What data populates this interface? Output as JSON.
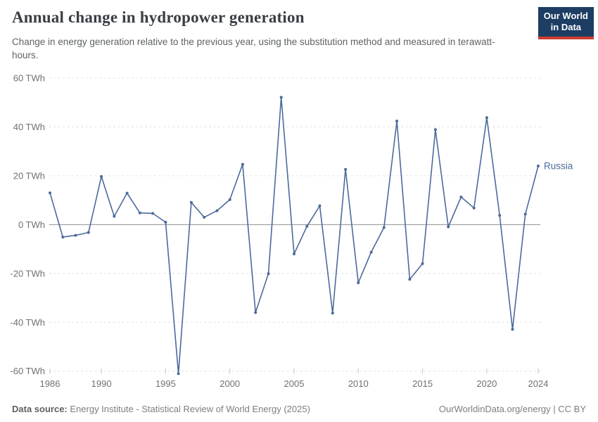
{
  "header": {
    "title": "Annual change in hydropower generation",
    "subtitle": "Change in energy generation relative to the previous year, using the substitution method and measured in terawatt-hours.",
    "logo": {
      "line1": "Our World",
      "line2": "in Data",
      "bg_color": "#1d3d63",
      "bar_color": "#cf3c33"
    }
  },
  "chart_data": {
    "type": "line",
    "title": "Annual change in hydropower generation",
    "unit": "TWh",
    "series_label": "Russia",
    "line_color": "#4C6A9C",
    "grid": "horizontal dashed",
    "legend_position": "end-of-line label",
    "x": [
      1986,
      1987,
      1988,
      1989,
      1990,
      1991,
      1992,
      1993,
      1994,
      1995,
      1996,
      1997,
      1998,
      1999,
      2000,
      2001,
      2002,
      2003,
      2004,
      2005,
      2006,
      2007,
      2008,
      2009,
      2010,
      2011,
      2012,
      2013,
      2014,
      2015,
      2016,
      2017,
      2018,
      2019,
      2020,
      2021,
      2022,
      2023,
      2024
    ],
    "values": [
      13,
      -5.1,
      -4.4,
      -3.2,
      19.7,
      3.4,
      12.9,
      4.8,
      4.6,
      1.0,
      -61,
      9.1,
      3.0,
      5.7,
      10.2,
      24.7,
      -36.0,
      -20.1,
      52.1,
      -12.0,
      -0.7,
      7.7,
      -36.2,
      22.6,
      -23.8,
      -11.3,
      -1.2,
      42.4,
      -22.4,
      -16.0,
      38.9,
      -0.9,
      11.3,
      6.8,
      43.8,
      3.8,
      -42.9,
      4.3,
      24.0
    ],
    "ylim": [
      -60,
      60
    ],
    "y_ticks": [
      60,
      40,
      20,
      0,
      -20,
      -40,
      -60
    ],
    "y_tick_suffix": " TWh",
    "x_ticks": [
      1986,
      1990,
      1995,
      2000,
      2005,
      2010,
      2015,
      2020,
      2024
    ]
  },
  "footer": {
    "source_label": "Data source:",
    "source_text": "Energy Institute - Statistical Review of World Energy (2025)",
    "url": "OurWorldinData.org/energy",
    "divider": " | ",
    "license": "CC BY"
  }
}
